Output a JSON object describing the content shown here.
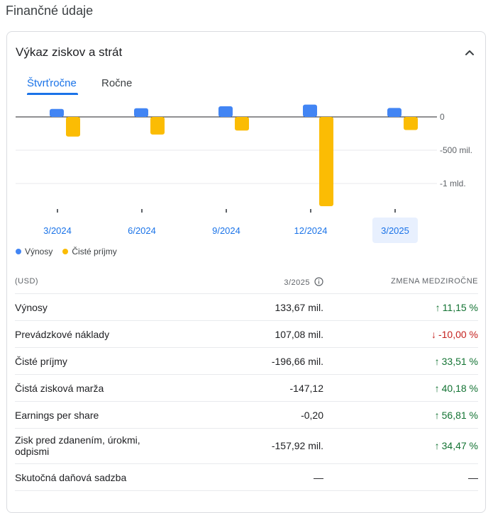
{
  "section_title": "Finančné údaje",
  "card": {
    "title": "Výkaz ziskov a strát",
    "collapse_icon": "chevron-up-icon"
  },
  "tabs": [
    {
      "label": "Štvrťročne",
      "active": true
    },
    {
      "label": "Ročne",
      "active": false
    }
  ],
  "chart_data": {
    "type": "bar",
    "categories": [
      "3/2024",
      "6/2024",
      "9/2024",
      "12/2024",
      "3/2025"
    ],
    "selected_category": "3/2025",
    "series": [
      {
        "name": "Výnosy",
        "color": "#4285f4",
        "values": [
          120,
          130,
          160,
          185,
          133.67
        ]
      },
      {
        "name": "Čisté príjmy",
        "color": "#fbbc04",
        "values": [
          -295,
          -265,
          -205,
          -1340,
          -196.66
        ]
      }
    ],
    "y_ticks": [
      {
        "value": 0,
        "label": "0"
      },
      {
        "value": -500,
        "label": "-500 mil."
      },
      {
        "value": -1000,
        "label": "-1 mld."
      }
    ],
    "ylim": [
      -1400,
      200
    ],
    "unit": "mil.",
    "legend_position": "bottom-left",
    "grid": true
  },
  "table": {
    "header": {
      "label": "(USD)",
      "period": "3/2025",
      "change": "ZMENA MEDZIROČNE"
    },
    "rows": [
      {
        "label": "Výnosy",
        "value": "133,67 mil.",
        "change": "11,15 %",
        "direction": "up"
      },
      {
        "label": "Prevádzkové náklady",
        "value": "107,08 mil.",
        "change": "-10,00 %",
        "direction": "down"
      },
      {
        "label": "Čisté príjmy",
        "value": "-196,66 mil.",
        "change": "33,51 %",
        "direction": "up"
      },
      {
        "label": "Čistá zisková marža",
        "value": "-147,12",
        "change": "40,18 %",
        "direction": "up"
      },
      {
        "label": "Earnings per share",
        "value": "-0,20",
        "change": "56,81 %",
        "direction": "up"
      },
      {
        "label": "Zisk pred zdanením, úrokmi, odpismi",
        "value": "-157,92 mil.",
        "change": "34,47 %",
        "direction": "up"
      },
      {
        "label": "Skutočná daňová sadzba",
        "value": "—",
        "change": "—",
        "direction": "none"
      }
    ]
  }
}
